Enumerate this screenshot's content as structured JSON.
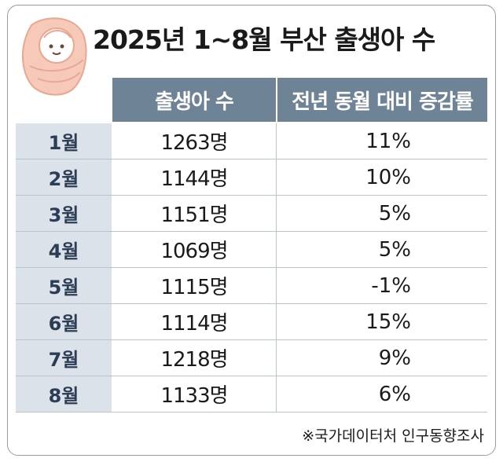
{
  "title": "2025년 1~8월 부산 출생아 수",
  "headers": {
    "births": "출생아 수",
    "change": "전년 동월 대비 증감률"
  },
  "rows": [
    {
      "month": "1월",
      "births": "1263명",
      "change": "11%"
    },
    {
      "month": "2월",
      "births": "1144명",
      "change": "10%"
    },
    {
      "month": "3월",
      "births": "1151명",
      "change": "5%"
    },
    {
      "month": "4월",
      "births": "1069명",
      "change": "5%"
    },
    {
      "month": "5월",
      "births": "1115명",
      "change": "-1%"
    },
    {
      "month": "6월",
      "births": "1114명",
      "change": "15%"
    },
    {
      "month": "7월",
      "births": "1218명",
      "change": "9%"
    },
    {
      "month": "8월",
      "births": "1133명",
      "change": "6%"
    }
  ],
  "source": "※국가데이터처 인구동향조사",
  "icon": "baby-icon",
  "colors": {
    "header_bg": "#6e8396",
    "month_bg": "#dbe2ea",
    "baby_skin": "#f7c9b8"
  },
  "chart_data": {
    "type": "table",
    "title": "2025년 1~8월 부산 출생아 수",
    "columns": [
      "",
      "출생아 수",
      "전년 동월 대비 증감률"
    ],
    "categories": [
      "1월",
      "2월",
      "3월",
      "4월",
      "5월",
      "6월",
      "7월",
      "8월"
    ],
    "series": [
      {
        "name": "출생아 수",
        "values": [
          1263,
          1144,
          1151,
          1069,
          1115,
          1114,
          1218,
          1133
        ]
      },
      {
        "name": "전년 동월 대비 증감률",
        "values": [
          11,
          10,
          5,
          5,
          -1,
          15,
          9,
          6
        ]
      }
    ]
  }
}
